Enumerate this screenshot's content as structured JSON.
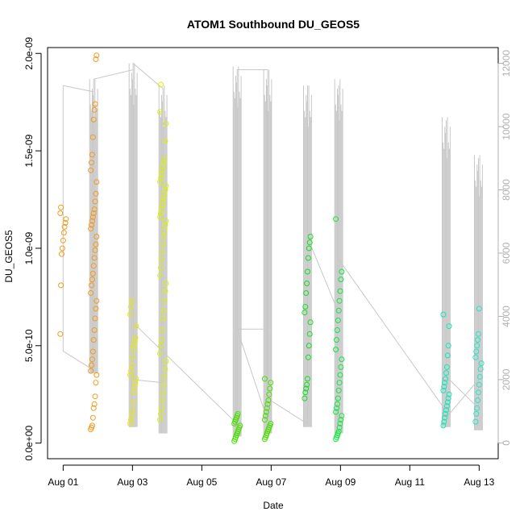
{
  "chart_data": {
    "type": "scatter",
    "title": "ATOM1 Southbound DU_GEOS5",
    "xlabel": "Date",
    "ylabel": "DU_GEOS5",
    "y2label": "",
    "x_ticks": [
      "Aug 01",
      "Aug 03",
      "Aug 05",
      "Aug 07",
      "Aug 09",
      "Aug 11",
      "Aug 13"
    ],
    "x_tick_days": [
      1,
      3,
      5,
      7,
      9,
      11,
      13
    ],
    "xlim_days": [
      0.55,
      13.55
    ],
    "y_ticks": [
      "0.0e+00",
      "5.0e-10",
      "1.0e-09",
      "1.5e-09",
      "2.0e-09"
    ],
    "y_tick_values": [
      0,
      5e-10,
      1e-09,
      1.5e-09,
      2e-09
    ],
    "ylim": [
      -8e-11,
      2.03e-09
    ],
    "y2_ticks": [
      "0",
      "2000",
      "4000",
      "6000",
      "8000",
      "10000",
      "12000"
    ],
    "y2_tick_values": [
      0,
      2000,
      4000,
      6000,
      8000,
      10000,
      12000
    ],
    "y2lim": [
      -500,
      12500
    ],
    "point_colors": {
      "aug01": "#f39a1c",
      "aug03": "#e9ea00",
      "aug04": "#dcf000",
      "aug06": "#48e000",
      "aug08": "#10e020",
      "aug09": "#10e840",
      "aug12": "#10e8b8",
      "aug13": "#20e8c8"
    },
    "line_color": "#c8c8c8",
    "series": [
      {
        "flight": "aug01",
        "x": 1.0,
        "y": [
          5.6e-10,
          8.1e-10,
          9.7e-10,
          1e-09,
          1.04e-09,
          1.08e-09,
          1.11e-09,
          1.13e-09,
          1.15e-09,
          1.18e-09,
          1.21e-09
        ]
      },
      {
        "flight": "aug01",
        "x": 1.88,
        "y": [
          7e-11,
          8e-11,
          9e-11,
          1.3e-10,
          1.8e-10,
          2e-10,
          2.4e-10,
          3.1e-10,
          3.5e-10,
          3.7e-10,
          4e-10,
          4.3e-10,
          4.7e-10,
          5.3e-10,
          5.8e-10,
          6.4e-10,
          6.9e-10,
          7.3e-10,
          7.7e-10,
          8.1e-10,
          8.4e-10,
          8.7e-10,
          9.1e-10,
          9.5e-10,
          9.9e-10,
          1.02e-09,
          1.06e-09,
          1.1e-09,
          1.12e-09,
          1.14e-09,
          1.16e-09,
          1.18e-09,
          1.2e-09,
          1.24e-09,
          1.28e-09,
          1.34e-09,
          1.4e-09,
          1.44e-09,
          1.48e-09,
          1.57e-09,
          1.66e-09,
          1.71e-09,
          1.74e-09,
          1.97e-09,
          1.99e-09
        ]
      },
      {
        "flight": "aug03",
        "x": 3.02,
        "y": [
          1e-10,
          1.2e-10,
          1.4e-10,
          1.7e-10,
          2.1e-10,
          2.6e-10,
          2.9e-10,
          3.1e-10,
          3.3e-10,
          3.5e-10,
          3.7e-10,
          4e-10,
          4.4e-10,
          4.8e-10,
          5e-10,
          5.2e-10,
          5.4e-10,
          6e-10,
          6.6e-10,
          7e-10,
          7.3e-10
        ]
      },
      {
        "flight": "aug04",
        "x": 3.88,
        "y": [
          1.2e-10,
          1.5e-10,
          1.8e-10,
          2.2e-10,
          2.6e-10,
          3e-10,
          3.4e-10,
          3.8e-10,
          4.2e-10,
          4.6e-10,
          5e-10,
          5.3e-10,
          5.8e-10,
          6.4e-10,
          6.8e-10,
          7.3e-10,
          7.8e-10,
          8.2e-10,
          8.6e-10,
          9e-10,
          9.4e-10,
          9.8e-10,
          1.02e-09,
          1.06e-09,
          1.09e-09,
          1.12e-09,
          1.14e-09,
          1.16e-09,
          1.18e-09,
          1.2e-09,
          1.22e-09,
          1.24e-09,
          1.26e-09,
          1.28e-09,
          1.3e-09,
          1.32e-09,
          1.34e-09,
          1.36e-09,
          1.38e-09,
          1.4e-09,
          1.42e-09,
          1.44e-09,
          1.46e-09,
          1.55e-09,
          1.64e-09,
          1.7e-09,
          1.84e-09
        ]
      },
      {
        "flight": "aug06",
        "x": 6.02,
        "y": [
          1e-11,
          2e-11,
          3e-11,
          4e-11,
          5e-11,
          6e-11,
          7e-11,
          8e-11,
          9e-11,
          1e-10,
          1.1e-10,
          1.2e-10,
          1.3e-10,
          1.4e-10,
          1.5e-10
        ]
      },
      {
        "flight": "aug06",
        "x": 6.9,
        "y": [
          2e-11,
          3e-11,
          4e-11,
          5e-11,
          6e-11,
          7e-11,
          8e-11,
          9e-11,
          1e-10,
          1.2e-10,
          1.4e-10,
          1.6e-10,
          1.8e-10,
          2e-10,
          2.2e-10,
          2.5e-10,
          2.8e-10,
          3.1e-10,
          3.3e-10
        ]
      },
      {
        "flight": "aug08",
        "x": 8.05,
        "y": [
          2.3e-10,
          2.6e-10,
          2.8e-10,
          3e-10,
          3.3e-10,
          4.4e-10,
          5e-10,
          5.6e-10,
          6.2e-10,
          6.7e-10,
          7e-10,
          7.7e-10,
          8.2e-10,
          8.8e-10,
          9.5e-10,
          1e-09,
          1.03e-09,
          1.06e-09
        ]
      },
      {
        "flight": "aug09",
        "x": 8.95,
        "y": [
          2e-11,
          3e-11,
          4e-11,
          5e-11,
          6e-11,
          8e-11,
          1e-10,
          1.2e-10,
          1.4e-10,
          1.6e-10,
          1.8e-10,
          2e-10,
          2.3e-10,
          2.7e-10,
          3.1e-10,
          3.5e-10,
          3.9e-10,
          4.3e-10,
          4.8e-10,
          5.3e-10,
          5.8e-10,
          6.3e-10,
          6.8e-10,
          7.3e-10,
          7.8e-10,
          8.4e-10,
          8.8e-10,
          1.15e-09
        ]
      },
      {
        "flight": "aug12",
        "x": 12.05,
        "y": [
          9e-11,
          1.1e-10,
          1.3e-10,
          1.5e-10,
          1.7e-10,
          1.9e-10,
          2.1e-10,
          2.3e-10,
          2.5e-10,
          2.7e-10,
          2.9e-10,
          3.1e-10,
          3.3e-10,
          3.6e-10,
          3.9e-10,
          4.5e-10,
          5e-10,
          6e-10,
          6.6e-10
        ]
      },
      {
        "flight": "aug13",
        "x": 12.98,
        "y": [
          1.1e-10,
          1.5e-10,
          1.8e-10,
          2.2e-10,
          2.6e-10,
          3e-10,
          3.4e-10,
          3.8e-10,
          4.1e-10,
          4.4e-10,
          4.7e-10,
          5e-10,
          5.3e-10,
          5.6e-10,
          6.9e-10
        ]
      }
    ],
    "altitude_line": [
      [
        1.0,
        11300
      ],
      [
        1.88,
        11100
      ],
      [
        1.88,
        2300
      ],
      [
        1.0,
        2900
      ],
      [
        1.0,
        11300
      ],
      [
        1.88,
        11100
      ],
      [
        1.88,
        11500
      ],
      [
        3.02,
        11800
      ],
      [
        3.02,
        2000
      ],
      [
        3.88,
        1900
      ],
      [
        3.88,
        11200
      ],
      [
        3.02,
        12000
      ],
      [
        3.02,
        3800
      ],
      [
        6.02,
        600
      ],
      [
        6.02,
        11800
      ],
      [
        6.9,
        11800
      ],
      [
        6.9,
        700
      ],
      [
        6.02,
        3600
      ],
      [
        6.9,
        3600
      ],
      [
        6.9,
        1400
      ],
      [
        8.05,
        600
      ],
      [
        8.05,
        11300
      ],
      [
        8.05,
        6500
      ],
      [
        8.95,
        4100
      ],
      [
        8.95,
        11300
      ],
      [
        8.95,
        5800
      ],
      [
        12.05,
        1000
      ],
      [
        12.05,
        10200
      ],
      [
        12.05,
        800
      ],
      [
        12.98,
        2000
      ],
      [
        12.98,
        9000
      ],
      [
        12.98,
        1100
      ],
      [
        12.05,
        2100
      ]
    ],
    "altitude_spikes": [
      {
        "x": 1.88,
        "hi": 11500,
        "lo": 2200
      },
      {
        "x": 3.02,
        "hi": 12000,
        "lo": 500
      },
      {
        "x": 3.88,
        "hi": 11300,
        "lo": 300
      },
      {
        "x": 6.02,
        "hi": 11900,
        "lo": 200
      },
      {
        "x": 6.9,
        "hi": 11800,
        "lo": 300
      },
      {
        "x": 8.05,
        "hi": 11300,
        "lo": 500
      },
      {
        "x": 8.95,
        "hi": 11500,
        "lo": 300
      },
      {
        "x": 12.05,
        "hi": 10300,
        "lo": 500
      },
      {
        "x": 12.98,
        "hi": 9100,
        "lo": 400
      }
    ]
  }
}
